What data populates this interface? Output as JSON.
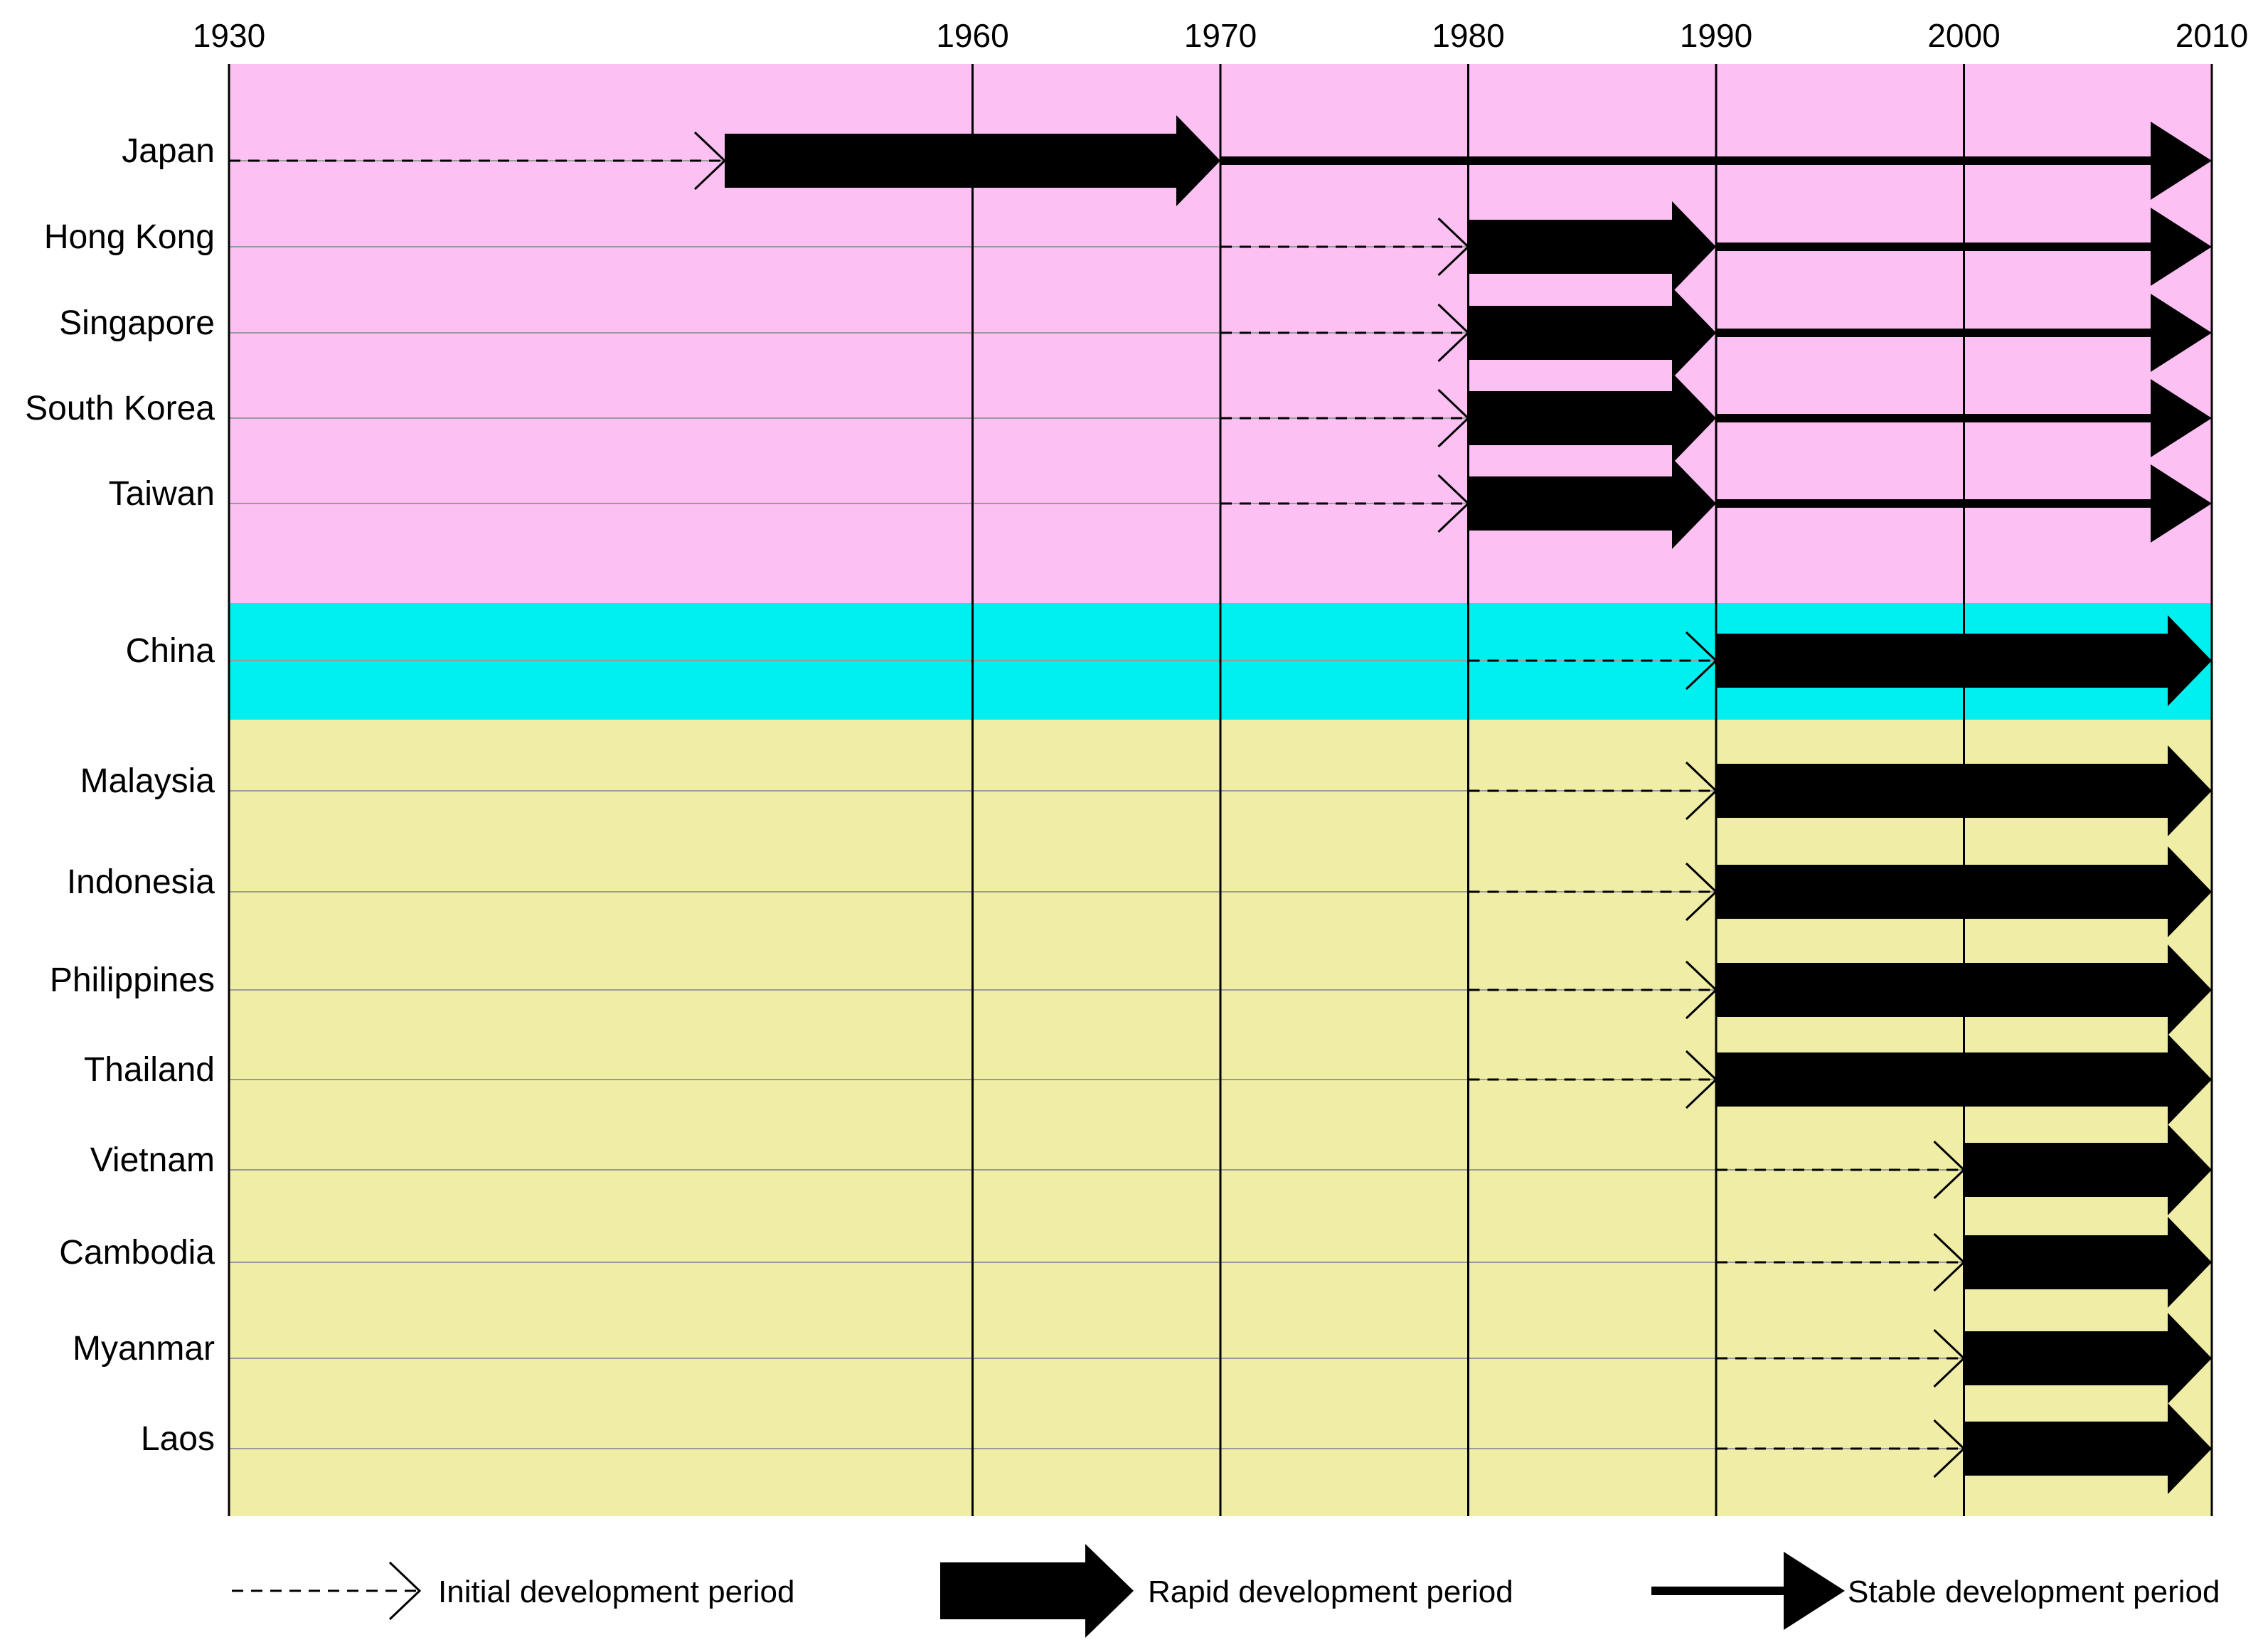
{
  "chart_data": {
    "type": "timeline",
    "x_axis": {
      "min": 1930,
      "max": 2010,
      "ticks": [
        1930,
        1960,
        1970,
        1980,
        1990,
        2000,
        2010
      ],
      "position": "top"
    },
    "groups": [
      {
        "name": "group-1",
        "color": "#fcc0f2",
        "rows": [
          "Japan",
          "Hong Kong",
          "Singapore",
          "South Korea",
          "Taiwan"
        ]
      },
      {
        "name": "group-2",
        "color": "#00f0f0",
        "rows": [
          "China"
        ]
      },
      {
        "name": "group-3",
        "color": "#f0eea6",
        "rows": [
          "Malaysia",
          "Indonesia",
          "Philippines",
          "Thailand",
          "Vietnam",
          "Cambodia",
          "Myanmar",
          "Laos"
        ]
      }
    ],
    "rows": [
      {
        "country": "Japan",
        "initial": [
          1930,
          1950
        ],
        "rapid": [
          1950,
          1970
        ],
        "stable": [
          1970,
          2010
        ]
      },
      {
        "country": "Hong Kong",
        "initial": [
          1970,
          1980
        ],
        "rapid": [
          1980,
          1990
        ],
        "stable": [
          1990,
          2010
        ]
      },
      {
        "country": "Singapore",
        "initial": [
          1970,
          1980
        ],
        "rapid": [
          1980,
          1990
        ],
        "stable": [
          1990,
          2010
        ]
      },
      {
        "country": "South Korea",
        "initial": [
          1970,
          1980
        ],
        "rapid": [
          1980,
          1990
        ],
        "stable": [
          1990,
          2010
        ]
      },
      {
        "country": "Taiwan",
        "initial": [
          1970,
          1980
        ],
        "rapid": [
          1980,
          1990
        ],
        "stable": [
          1990,
          2010
        ]
      },
      {
        "country": "China",
        "initial": [
          1980,
          1990
        ],
        "rapid": [
          1990,
          2010
        ],
        "stable": null
      },
      {
        "country": "Malaysia",
        "initial": [
          1980,
          1990
        ],
        "rapid": [
          1990,
          2010
        ],
        "stable": null
      },
      {
        "country": "Indonesia",
        "initial": [
          1980,
          1990
        ],
        "rapid": [
          1990,
          2010
        ],
        "stable": null
      },
      {
        "country": "Philippines",
        "initial": [
          1980,
          1990
        ],
        "rapid": [
          1990,
          2010
        ],
        "stable": null
      },
      {
        "country": "Thailand",
        "initial": [
          1980,
          1990
        ],
        "rapid": [
          1990,
          2010
        ],
        "stable": null
      },
      {
        "country": "Vietnam",
        "initial": [
          1990,
          2000
        ],
        "rapid": [
          2000,
          2010
        ],
        "stable": null
      },
      {
        "country": "Cambodia",
        "initial": [
          1990,
          2000
        ],
        "rapid": [
          2000,
          2010
        ],
        "stable": null
      },
      {
        "country": "Myanmar",
        "initial": [
          1990,
          2000
        ],
        "rapid": [
          2000,
          2010
        ],
        "stable": null
      },
      {
        "country": "Laos",
        "initial": [
          1990,
          2000
        ],
        "rapid": [
          2000,
          2010
        ],
        "stable": null
      }
    ],
    "legend": [
      {
        "key": "initial",
        "label": "Initial development period",
        "style": "dashed line with open arrowhead"
      },
      {
        "key": "rapid",
        "label": "Rapid development period",
        "style": "thick block arrow"
      },
      {
        "key": "stable",
        "label": "Stable development period",
        "style": "thin line with solid arrowhead"
      }
    ],
    "legend_position": "bottom"
  }
}
